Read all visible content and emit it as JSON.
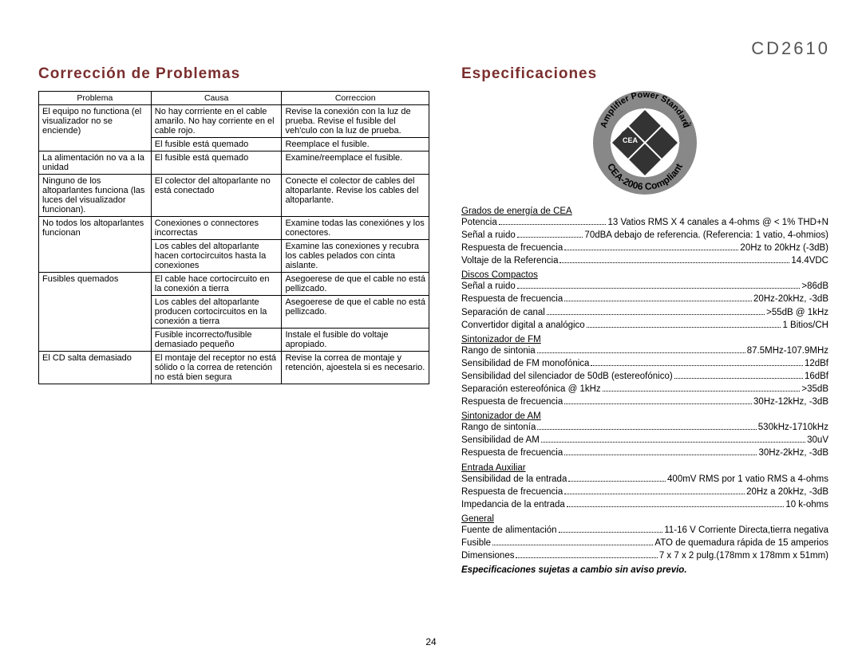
{
  "model": "CD2610",
  "pageNumber": "24",
  "troubleshooting": {
    "title": "Corrección de Problemas",
    "headers": [
      "Problema",
      "Causa",
      "Correccion"
    ],
    "rows": [
      {
        "p": "El equipo no functiona (el visualizador no se enciende)",
        "c": "No hay corrriente en el cable amarilo. No hay corriente en el cable rojo.",
        "f": "Revise la conexión con la luz de prueba. Revise el fusible del veh'culo con la luz de prueba."
      },
      {
        "p": "",
        "c": "El fusible está quemado",
        "f": "Reemplace el fusible."
      },
      {
        "p": "La alimentación no va a la unidad",
        "c": "El fusible está quemado",
        "f": "Examine/reemplace el fusible."
      },
      {
        "p": "Ninguno de los altoparlantes funciona (las luces del visualizador funcionan).",
        "c": "El colector del altoparlante no está conectado",
        "f": "Conecte el colector de cables del altoparlante. Revise los cables del altoparlante."
      },
      {
        "p": "No todos los altoparlantes funcionan",
        "c": "Conexiones o connectores incorrectas",
        "f": "Examine todas las conexiónes y los conectores."
      },
      {
        "p": "",
        "c": "Los cables del altoparlante hacen cortocircuitos hasta la conexiones",
        "f": "Examine las conexiones y recubra los cables pelados con cinta aislante."
      },
      {
        "p": "Fusibles quemados",
        "c": "El cable hace cortocircuito en la conexión a tierra",
        "f": "Asegoerese de que el cable no está pellizcado."
      },
      {
        "p": "",
        "c": "Los cables del altoparlante producen cortocircuitos en la conexión a tierra",
        "f": "Asegoerese de que el cable no está pellizcado."
      },
      {
        "p": "",
        "c": "Fusible incorrecto/fusible demasiado pequeño",
        "f": "Instale el fusible do voltaje apropiado."
      },
      {
        "p": "El CD salta demasiado",
        "c": "El montaje del receptor no está sólido o la correa de retención no está bien segura",
        "f": "Revise la correa de montaje y retención, ajoestela si es necesario."
      }
    ]
  },
  "specs": {
    "title": "Especificaciones",
    "note": "Especificaciones sujetas a cambio sin aviso previo.",
    "sections": [
      {
        "heading": "Grados de energía de CEA",
        "items": [
          {
            "l": "Potencia",
            "v": "13 Vatios RMS X 4 canales a 4-ohms @ < 1% THD+N"
          },
          {
            "l": "Señal a ruido",
            "v": "70dBA debajo de referencia. (Referencia: 1 vatio, 4-ohmios)"
          },
          {
            "l": "Respuesta de frecuencia",
            "v": "20Hz to 20kHz (-3dB)"
          },
          {
            "l": "Voltaje de la Referencia",
            "v": "14.4VDC"
          }
        ]
      },
      {
        "heading": "Discos Compactos",
        "items": [
          {
            "l": "Señal a ruido",
            "v": ">86dB"
          },
          {
            "l": "Respuesta de frecuencia",
            "v": "20Hz-20kHz, -3dB"
          },
          {
            "l": "Separación de canal",
            "v": ">55dB @ 1kHz"
          },
          {
            "l": "Convertidor digital a analógico",
            "v": "1 Bitios/CH"
          }
        ]
      },
      {
        "heading": "Sintonizador de FM",
        "items": [
          {
            "l": "Rango de sintonia",
            "v": "87.5MHz-107.9MHz"
          },
          {
            "l": "Sensibilidad de FM monofónica",
            "v": "12dBf"
          },
          {
            "l": "Sensibilidad del silenciador de 50dB (estereofónico)",
            "v": "16dBf"
          },
          {
            "l": "Separación estereofónica @ 1kHz",
            "v": ">35dB"
          },
          {
            "l": "Respuesta de frecuencia",
            "v": "30Hz-12kHz, -3dB"
          }
        ]
      },
      {
        "heading": "Sintonizador de AM",
        "items": [
          {
            "l": "Rango de sintonía",
            "v": "530kHz-1710kHz"
          },
          {
            "l": "Sensibilidad de AM",
            "v": "30uV"
          },
          {
            "l": "Respuesta de frecuencia",
            "v": "30Hz-2kHz, -3dB"
          }
        ]
      },
      {
        "heading": "Entrada Auxiliar",
        "items": [
          {
            "l": "Sensibilidad de la entrada",
            "v": "400mV RMS por 1 vatio RMS a 4-ohms"
          },
          {
            "l": "Respuesta de frecuencia",
            "v": "20Hz a 20kHz, -3dB"
          },
          {
            "l": "Impedancia de la entrada",
            "v": "10 k-ohms"
          }
        ]
      },
      {
        "heading": "General",
        "items": [
          {
            "l": "Fuente de alimentación",
            "v": "11-16 V Corriente Directa,tierra negativa"
          },
          {
            "l": "Fusible",
            "v": "ATO de quemadura rápida de 15 amperios"
          },
          {
            "l": "Dimensiones",
            "v": "7 x 7 x 2 pulg.(178mm x 178mm x 51mm)"
          }
        ]
      }
    ]
  },
  "logo": {
    "outerText1": "Amplifier Power Standard",
    "outerText2": "CEA-2006 Compliant",
    "cea": "CEA",
    "colors": {
      "ring": "#888888",
      "dark": "#333333",
      "text": "#000000"
    }
  }
}
